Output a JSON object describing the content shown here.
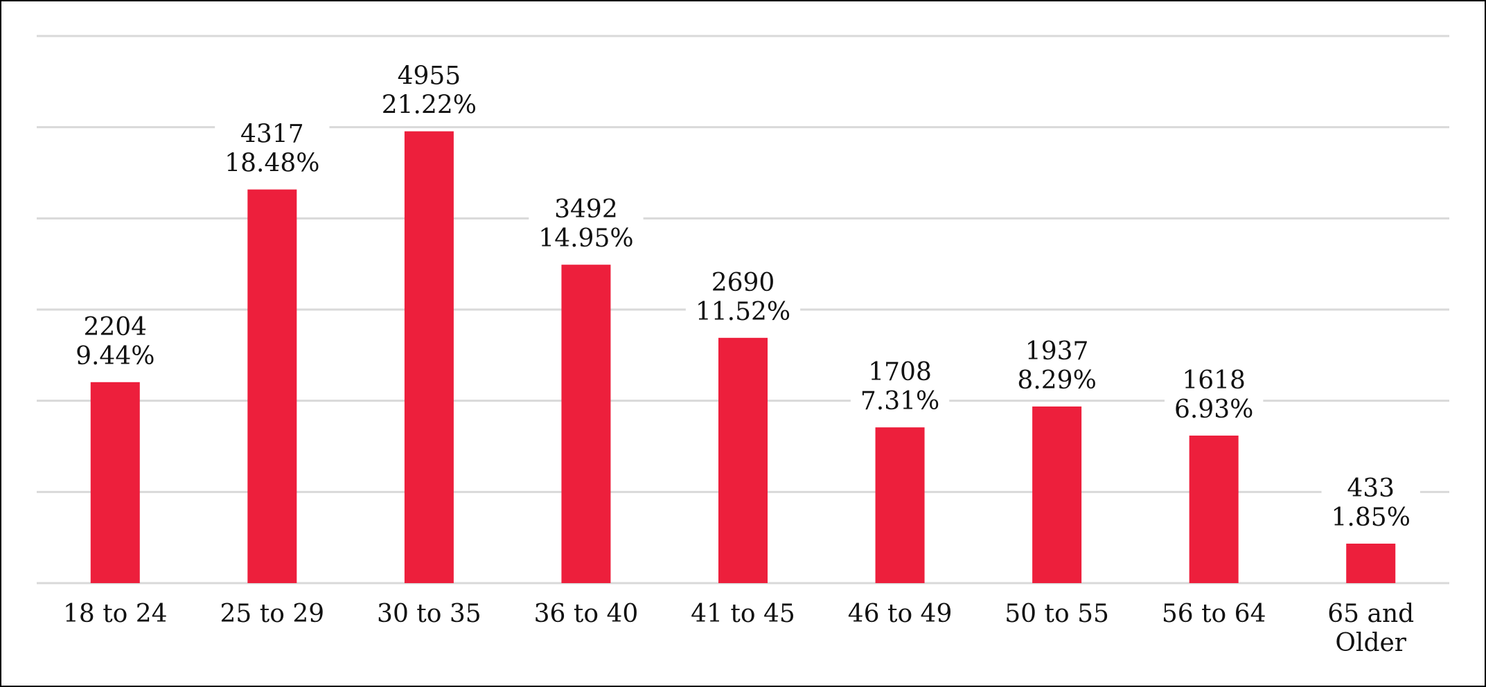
{
  "chart_data": {
    "type": "bar",
    "categories": [
      "18 to 24",
      "25 to 29",
      "30 to 35",
      "36 to 40",
      "41 to 45",
      "46 to 49",
      "50 to 55",
      "56 to 64",
      "65 and Older"
    ],
    "category_lines": [
      [
        "18 to 24"
      ],
      [
        "25 to 29"
      ],
      [
        "30 to 35"
      ],
      [
        "36 to 40"
      ],
      [
        "41 to 45"
      ],
      [
        "46 to 49"
      ],
      [
        "50 to 55"
      ],
      [
        "56 to 64"
      ],
      [
        "65 and",
        "Older"
      ]
    ],
    "values": [
      2204,
      4317,
      4955,
      3492,
      2690,
      1708,
      1937,
      1618,
      433
    ],
    "percent_labels": [
      "9.44%",
      "18.48%",
      "21.22%",
      "14.95%",
      "11.52%",
      "7.31%",
      "8.29%",
      "6.93%",
      "1.85%"
    ],
    "ylim": [
      0,
      6000
    ],
    "gridlines": [
      0,
      1000,
      2000,
      3000,
      4000,
      5000,
      6000
    ],
    "grid": true,
    "legend": "none",
    "bar_color": "#ed1f3c",
    "title": "",
    "xlabel": "",
    "ylabel": ""
  }
}
